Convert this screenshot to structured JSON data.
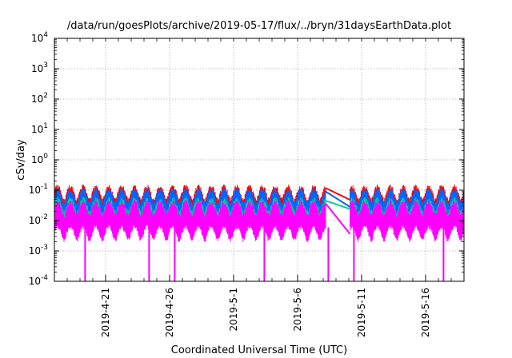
{
  "chart_data": {
    "type": "line",
    "title": "/data/run/goesPlots/archive/2019-05-17/flux/../bryn/31daysEarthData.plot",
    "xlabel": "Coordinated Universal Time (UTC)",
    "ylabel": "cSv/day",
    "y_scale": "log",
    "ylim": [
      0.0001,
      10000
    ],
    "xlim": [
      "2019-04-17",
      "2019-05-19"
    ],
    "x_ticks": [
      "2019-4-21",
      "2019-4-26",
      "2019-5-1",
      "2019-5-6",
      "2019-5-11",
      "2019-5-16"
    ],
    "y_ticks": [
      {
        "base": "10",
        "exp": "-4",
        "value": 0.0001
      },
      {
        "base": "10",
        "exp": "-3",
        "value": 0.001
      },
      {
        "base": "10",
        "exp": "-2",
        "value": 0.01
      },
      {
        "base": "10",
        "exp": "-1",
        "value": 0.1
      },
      {
        "base": "10",
        "exp": "0",
        "value": 1
      },
      {
        "base": "10",
        "exp": "1",
        "value": 10
      },
      {
        "base": "10",
        "exp": "2",
        "value": 100
      },
      {
        "base": "10",
        "exp": "3",
        "value": 1000
      },
      {
        "base": "10",
        "exp": "4",
        "value": 10000
      }
    ],
    "grid": true,
    "data_gap": [
      "2019-05-08",
      "2019-05-10"
    ],
    "series": [
      {
        "color": "#ff0000",
        "typical_low": 0.06,
        "typical_high": 0.13
      },
      {
        "color": "#0066ff",
        "typical_low": 0.035,
        "typical_high": 0.1
      },
      {
        "color": "#00cc99",
        "typical_low": 0.03,
        "typical_high": 0.05
      },
      {
        "color": "#ff00ff",
        "typical_low": 0.006,
        "typical_high": 0.04
      }
    ],
    "dropouts": [
      "2019-04-19",
      "2019-04-24",
      "2019-04-26",
      "2019-05-03",
      "2019-05-08",
      "2019-05-10",
      "2019-05-17"
    ]
  }
}
